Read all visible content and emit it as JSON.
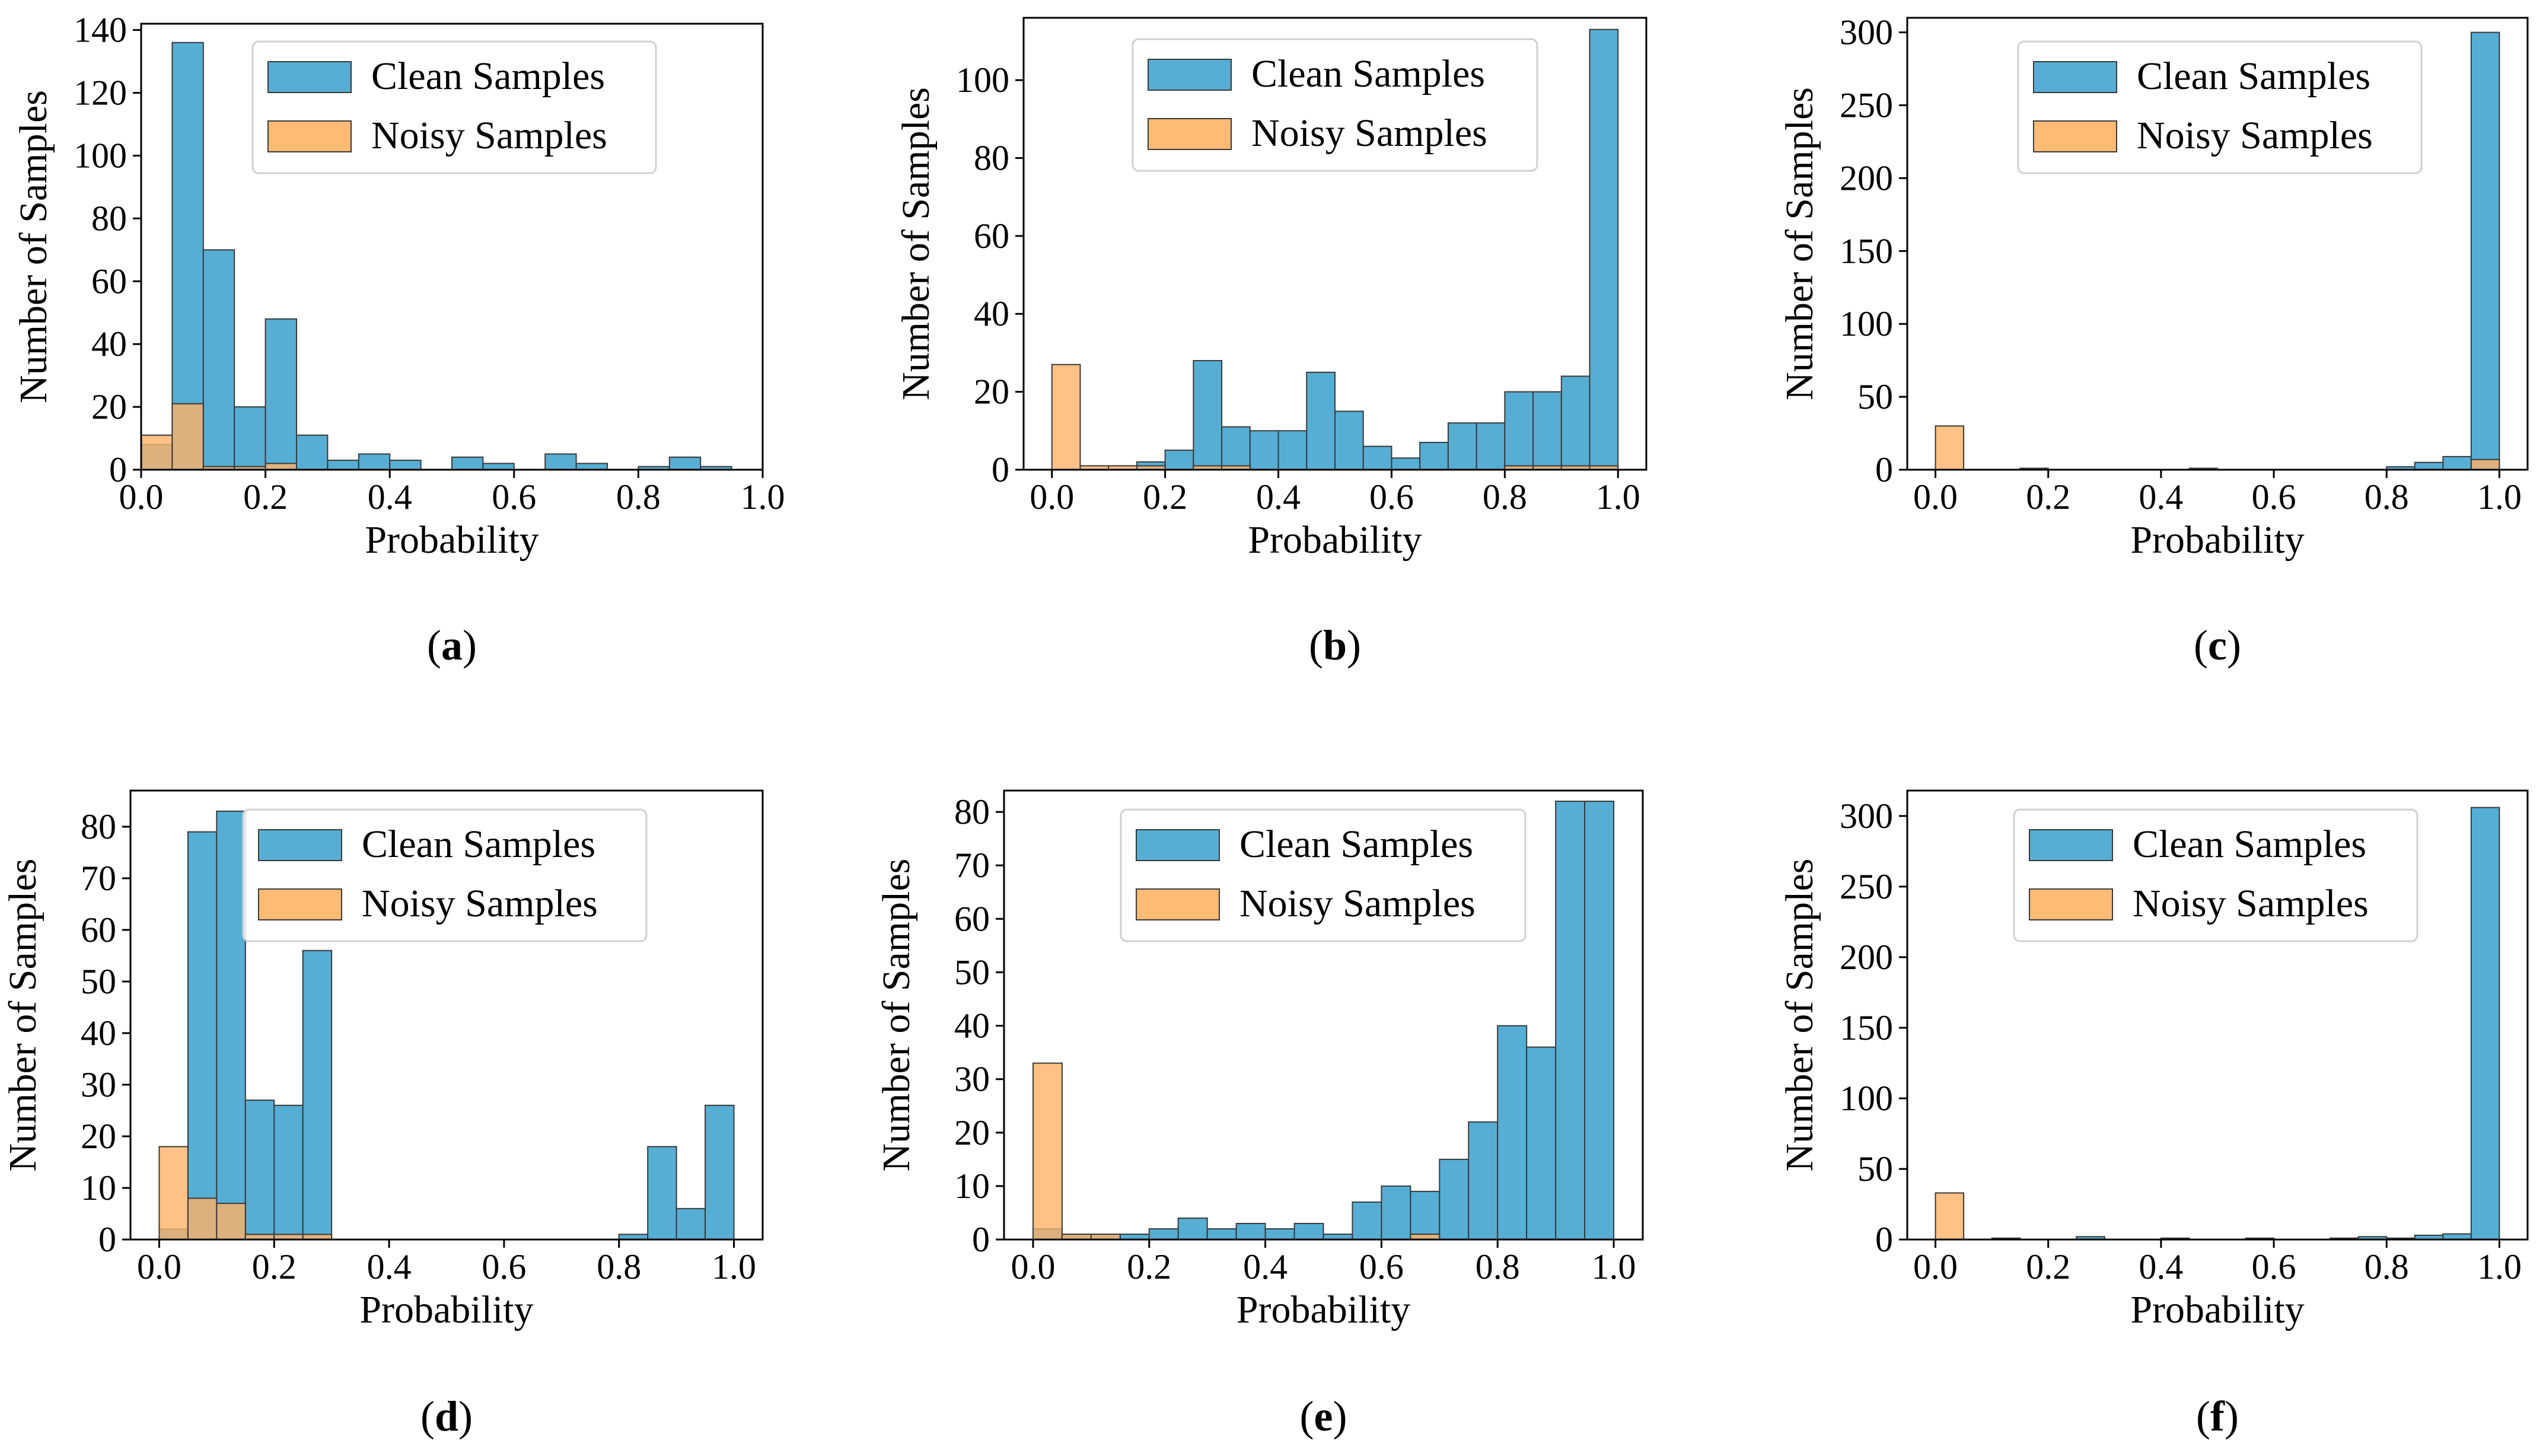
{
  "figure": {
    "colors": {
      "clean": "#56aed4",
      "noisy": "#ffb266",
      "edge": "#3a3a3a"
    },
    "common": {
      "xlabel": "Probability",
      "ylabel": "Number of Samples",
      "legend_labels": [
        "Clean Samples",
        "Noisy Samples"
      ],
      "xticks": [
        "0.0",
        "0.2",
        "0.4",
        "0.6",
        "0.8",
        "1.0"
      ]
    }
  },
  "chart_data": [
    {
      "type": "bar",
      "subfigure_label": "(a)",
      "bins": 20,
      "xlim": [
        0,
        1
      ],
      "ylim": [
        0,
        142
      ],
      "yticks": [
        "0",
        "20",
        "40",
        "60",
        "80",
        "100",
        "120",
        "140"
      ],
      "series": [
        {
          "name": "Clean Samples",
          "values": [
            8,
            136,
            70,
            20,
            48,
            11,
            3,
            5,
            3,
            0,
            4,
            2,
            0,
            5,
            2,
            0,
            1,
            4,
            1,
            0
          ]
        },
        {
          "name": "Noisy Samples",
          "values": [
            11,
            21,
            1,
            1,
            2,
            0,
            0,
            0,
            0,
            0,
            0,
            0,
            0,
            0,
            0,
            0,
            0,
            0,
            0,
            0
          ]
        }
      ]
    },
    {
      "type": "bar",
      "subfigure_label": "(b)",
      "bins": 20,
      "xlim": [
        -0.05,
        1.05
      ],
      "ylim": [
        0,
        116
      ],
      "yticks": [
        "0",
        "20",
        "40",
        "60",
        "80",
        "100"
      ],
      "series": [
        {
          "name": "Clean Samples",
          "values": [
            0,
            0,
            0,
            2,
            5,
            28,
            11,
            10,
            10,
            25,
            15,
            6,
            3,
            7,
            12,
            12,
            20,
            20,
            24,
            113
          ]
        },
        {
          "name": "Noisy Samples",
          "values": [
            27,
            1,
            1,
            1,
            0,
            1,
            1,
            0,
            0,
            0,
            0,
            0,
            0,
            0,
            0,
            0,
            1,
            1,
            1,
            1
          ]
        }
      ]
    },
    {
      "type": "bar",
      "subfigure_label": "(c)",
      "bins": 20,
      "xlim": [
        -0.05,
        1.05
      ],
      "ylim": [
        0,
        310
      ],
      "yticks": [
        "0",
        "50",
        "100",
        "150",
        "200",
        "250",
        "300"
      ],
      "series": [
        {
          "name": "Clean Samples",
          "values": [
            0,
            0,
            0,
            1,
            0,
            0,
            0,
            0,
            0,
            1,
            0,
            0,
            0,
            0,
            0,
            0,
            2,
            5,
            9,
            300
          ]
        },
        {
          "name": "Noisy Samples",
          "values": [
            30,
            0,
            0,
            0,
            0,
            0,
            0,
            0,
            0,
            0,
            0,
            0,
            0,
            0,
            0,
            0,
            0,
            0,
            0,
            7
          ]
        }
      ]
    },
    {
      "type": "bar",
      "subfigure_label": "(d)",
      "bins": 20,
      "xlim": [
        -0.05,
        1.05
      ],
      "ylim": [
        0,
        87
      ],
      "yticks": [
        "0",
        "10",
        "20",
        "30",
        "40",
        "50",
        "60",
        "70",
        "80"
      ],
      "series": [
        {
          "name": "Clean Samples",
          "values": [
            2,
            79,
            83,
            27,
            26,
            56,
            0,
            0,
            0,
            0,
            0,
            0,
            0,
            0,
            0,
            0,
            1,
            18,
            6,
            26
          ]
        },
        {
          "name": "Noisy Samples",
          "values": [
            18,
            8,
            7,
            1,
            1,
            1,
            0,
            0,
            0,
            0,
            0,
            0,
            0,
            0,
            0,
            0,
            0,
            0,
            0,
            0
          ]
        }
      ]
    },
    {
      "type": "bar",
      "subfigure_label": "(e)",
      "bins": 20,
      "xlim": [
        -0.05,
        1.05
      ],
      "ylim": [
        0,
        84
      ],
      "yticks": [
        "0",
        "10",
        "20",
        "30",
        "40",
        "50",
        "60",
        "70",
        "80"
      ],
      "series": [
        {
          "name": "Clean Samples",
          "values": [
            2,
            1,
            1,
            1,
            2,
            4,
            2,
            3,
            2,
            3,
            1,
            7,
            10,
            9,
            15,
            22,
            40,
            36,
            82,
            82
          ]
        },
        {
          "name": "Noisy Samples",
          "values": [
            33,
            1,
            1,
            0,
            0,
            0,
            0,
            0,
            0,
            0,
            0,
            0,
            0,
            1,
            0,
            0,
            0,
            0,
            0,
            0
          ]
        }
      ]
    },
    {
      "type": "bar",
      "subfigure_label": "(f)",
      "bins": 20,
      "xlim": [
        -0.05,
        1.05
      ],
      "ylim": [
        0,
        318
      ],
      "yticks": [
        "0",
        "50",
        "100",
        "150",
        "200",
        "250",
        "300"
      ],
      "series": [
        {
          "name": "Clean Samples",
          "values": [
            0,
            0,
            1,
            0,
            0,
            2,
            0,
            0,
            1,
            0,
            0,
            1,
            0,
            0,
            1,
            2,
            1,
            3,
            4,
            306
          ]
        },
        {
          "name": "Noisy Samples",
          "values": [
            33,
            0,
            0,
            0,
            0,
            0,
            0,
            0,
            0,
            0,
            0,
            0,
            0,
            0,
            0,
            0,
            0,
            0,
            0,
            0
          ]
        }
      ]
    }
  ]
}
